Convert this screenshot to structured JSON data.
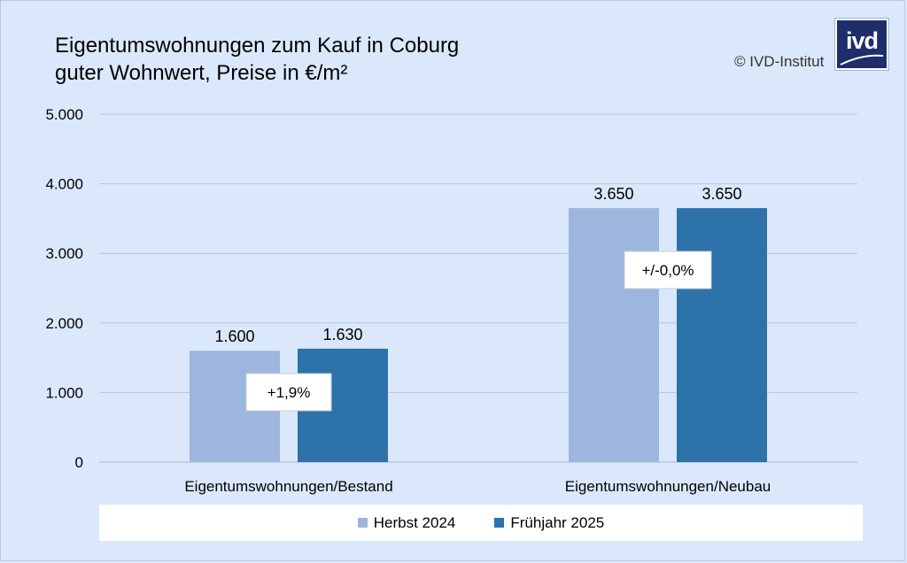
{
  "title": {
    "line1": "Eigentumswohnungen zum Kauf in Coburg",
    "line2": "guter Wohnwert, Preise in €/m²"
  },
  "copyright": "© IVD-Institut",
  "logo": {
    "text": "ivd",
    "background": "#1f2d6b"
  },
  "colors": {
    "background": "#dbe8fb",
    "series1": "#9db6dd",
    "series2": "#2e72aa",
    "grid": "#b8c6d8"
  },
  "chart_data": {
    "type": "bar",
    "categories": [
      "Eigentumswohnungen/Bestand",
      "Eigentumswohnungen/Neubau"
    ],
    "series": [
      {
        "name": "Herbst 2024",
        "values": [
          1600,
          3650
        ],
        "labels": [
          "1.600",
          "3.650"
        ]
      },
      {
        "name": "Frühjahr 2025",
        "values": [
          1630,
          3650
        ],
        "labels": [
          "1.630",
          "3.650"
        ]
      }
    ],
    "ylim": [
      0,
      5000
    ],
    "yticks": [
      0,
      1000,
      2000,
      3000,
      4000,
      5000
    ],
    "ytick_labels": [
      "0",
      "1.000",
      "2.000",
      "3.000",
      "4.000",
      "5.000"
    ],
    "annotations": [
      "+1,9%",
      "+/-0,0%"
    ],
    "grid": true,
    "legend_position": "bottom"
  }
}
